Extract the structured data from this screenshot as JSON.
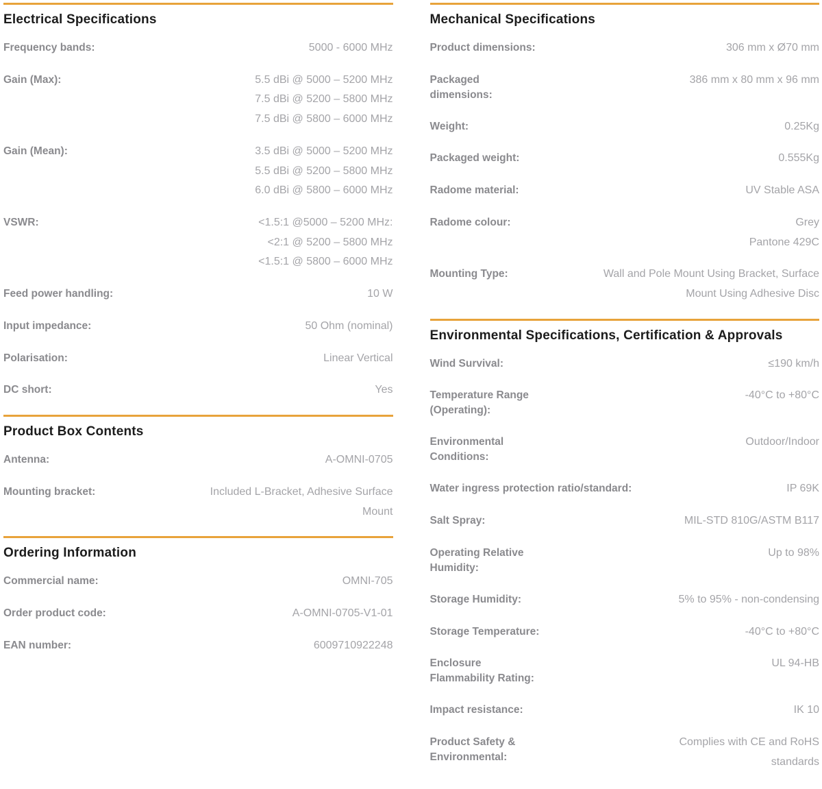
{
  "page": {
    "accent_color": "#E8A33B",
    "heading_color": "#1c1c1c",
    "label_color": "#8a8a8e",
    "value_color": "#a4a4a8"
  },
  "columns": [
    {
      "name": "left",
      "sections": [
        {
          "title": "Electrical Specifications",
          "rows": [
            {
              "label": "Frequency bands:",
              "values": [
                "5000 - 6000 MHz"
              ]
            },
            {
              "label": "Gain (Max):",
              "values": [
                "5.5 dBi @ 5000 – 5200 MHz",
                "7.5 dBi @ 5200 – 5800 MHz",
                "7.5 dBi @ 5800 – 6000 MHz"
              ]
            },
            {
              "label": "Gain (Mean):",
              "values": [
                "3.5 dBi @ 5000 – 5200 MHz",
                "5.5 dBi @ 5200 – 5800 MHz",
                "6.0 dBi @ 5800 – 6000 MHz"
              ]
            },
            {
              "label": "VSWR:",
              "values": [
                "<1.5:1 @5000 – 5200 MHz:",
                "<2:1 @ 5200 – 5800 MHz",
                "<1.5:1 @ 5800 – 6000 MHz"
              ]
            },
            {
              "label": "Feed power handling:",
              "values": [
                "10 W"
              ]
            },
            {
              "label": "Input impedance:",
              "values": [
                "50 Ohm (nominal)"
              ]
            },
            {
              "label": "Polarisation:",
              "values": [
                "Linear Vertical"
              ]
            },
            {
              "label": "DC short:",
              "values": [
                "Yes"
              ]
            }
          ]
        },
        {
          "title": "Product Box Contents",
          "rows": [
            {
              "label": "Antenna:",
              "values": [
                "A-OMNI-0705"
              ]
            },
            {
              "label": "Mounting bracket:",
              "values": [
                "Included L-Bracket, Adhesive Surface",
                "Mount"
              ]
            }
          ]
        },
        {
          "title": "Ordering Information",
          "rows": [
            {
              "label": "Commercial name:",
              "values": [
                "OMNI-705"
              ]
            },
            {
              "label": "Order product code:",
              "values": [
                "A-OMNI-0705-V1-01"
              ]
            },
            {
              "label": "EAN number:",
              "values": [
                "6009710922248"
              ]
            }
          ]
        }
      ]
    },
    {
      "name": "right",
      "sections": [
        {
          "title": "Mechanical Specifications",
          "rows": [
            {
              "label": "Product dimensions:",
              "values": [
                "306 mm x Ø70 mm"
              ]
            },
            {
              "label": "Packaged\ndimensions:",
              "values": [
                "386 mm x 80 mm x 96 mm"
              ]
            },
            {
              "label": "Weight:",
              "values": [
                "0.25Kg"
              ]
            },
            {
              "label": "Packaged weight:",
              "values": [
                "0.555Kg"
              ]
            },
            {
              "label": "Radome material:",
              "values": [
                "UV Stable ASA"
              ]
            },
            {
              "label": "Radome colour:",
              "values": [
                "Grey",
                "Pantone 429C"
              ]
            },
            {
              "label": "Mounting Type:",
              "values": [
                "Wall and Pole Mount Using Bracket, Surface",
                "Mount Using Adhesive Disc"
              ]
            }
          ]
        },
        {
          "title": "Environmental Specifications, Certification & Approvals",
          "rows": [
            {
              "label": "Wind Survival:",
              "values": [
                "≤190 km/h"
              ]
            },
            {
              "label": "Temperature Range\n(Operating):",
              "values": [
                "-40°C to +80°C"
              ]
            },
            {
              "label": "Environmental\nConditions:",
              "values": [
                "Outdoor/Indoor"
              ]
            },
            {
              "label": "Water ingress protection ratio/standard:",
              "values": [
                "IP 69K"
              ]
            },
            {
              "label": "Salt Spray:",
              "values": [
                "MIL-STD 810G/ASTM B117"
              ]
            },
            {
              "label": "Operating Relative\nHumidity:",
              "values": [
                "Up to 98%"
              ]
            },
            {
              "label": "Storage Humidity:",
              "values": [
                "5% to 95% - non-condensing"
              ]
            },
            {
              "label": "Storage Temperature:",
              "values": [
                "-40°C to +80°C"
              ]
            },
            {
              "label": "Enclosure\nFlammability Rating:",
              "values": [
                "UL 94-HB"
              ]
            },
            {
              "label": "Impact resistance:",
              "values": [
                "IK 10"
              ]
            },
            {
              "label": "Product Safety &\nEnvironmental:",
              "values": [
                "Complies with CE and RoHS",
                "standards"
              ]
            }
          ]
        }
      ]
    }
  ]
}
